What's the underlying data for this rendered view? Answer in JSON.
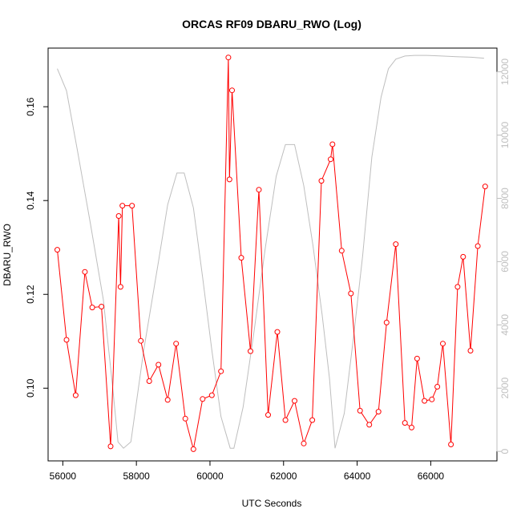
{
  "chart_data": {
    "type": "line",
    "title": "ORCAS RF09 DBARU_RWO (Log)",
    "xlabel": "UTC Seconds",
    "ylabel": "DBARU_RWO",
    "ylabel_right": "",
    "xlim": [
      55600,
      67800
    ],
    "ylim": [
      0.0845,
      0.1725
    ],
    "ylim_right": [
      -300,
      12750
    ],
    "x_ticks": [
      56000,
      58000,
      60000,
      62000,
      64000,
      66000
    ],
    "y_ticks": [
      0.1,
      0.12,
      0.14,
      0.16
    ],
    "y_ticks_right": [
      0,
      2000,
      4000,
      6000,
      8000,
      10000,
      12000
    ],
    "grid": false,
    "colors": {
      "primary": "#ff0000",
      "secondary": "#bebebe"
    },
    "series": [
      {
        "axis": "left",
        "style": "line+open-circles",
        "x": [
          55850,
          56100,
          56350,
          56600,
          56800,
          57050,
          57300,
          57520,
          57570,
          57620,
          57880,
          58120,
          58350,
          58600,
          58850,
          59080,
          59330,
          59550,
          59800,
          60050,
          60300,
          60500,
          60530,
          60600,
          60850,
          61100,
          61330,
          61580,
          61830,
          62050,
          62300,
          62550,
          62780,
          63030,
          63280,
          63330,
          63580,
          63830,
          64080,
          64330,
          64580,
          64800,
          65050,
          65300,
          65480,
          65630,
          65830,
          66030,
          66180,
          66330,
          66550,
          66730,
          66880,
          67080,
          67280,
          67480
        ],
        "y": [
          0.1295,
          0.1103,
          0.0985,
          0.1248,
          0.1172,
          0.1174,
          0.0876,
          0.1367,
          0.1216,
          0.1389,
          0.1389,
          0.1101,
          0.1015,
          0.105,
          0.0975,
          0.1095,
          0.0935,
          0.087,
          0.0977,
          0.0985,
          0.1036,
          0.1705,
          0.1445,
          0.1635,
          0.1278,
          0.1079,
          0.1423,
          0.0943,
          0.112,
          0.0932,
          0.0973,
          0.0882,
          0.0932,
          0.1442,
          0.1488,
          0.152,
          0.1293,
          0.1202,
          0.0952,
          0.0922,
          0.095,
          0.114,
          0.1307,
          0.0926,
          0.0916,
          0.1063,
          0.0973,
          0.0976,
          0.1003,
          0.1095,
          0.088,
          0.1216,
          0.128,
          0.108,
          0.1303,
          0.143
        ]
      },
      {
        "axis": "right",
        "style": "line",
        "x": [
          55850,
          56100,
          56400,
          56750,
          57100,
          57350,
          57500,
          57650,
          57850,
          58200,
          58600,
          58850,
          59100,
          59300,
          59550,
          59800,
          60050,
          60300,
          60550,
          60650,
          60900,
          61200,
          61500,
          61800,
          62050,
          62300,
          62550,
          62800,
          63050,
          63250,
          63400,
          63650,
          63900,
          64150,
          64400,
          64650,
          64850,
          65050,
          65300,
          65550,
          65900,
          66300,
          66700,
          67100,
          67450
        ],
        "y": [
          12100,
          11400,
          9500,
          7200,
          4800,
          2100,
          300,
          100,
          300,
          3200,
          6000,
          7800,
          8800,
          8800,
          7700,
          5500,
          3200,
          1100,
          100,
          100,
          1400,
          3800,
          6400,
          8700,
          9700,
          9700,
          8400,
          6500,
          4300,
          2300,
          100,
          1200,
          3600,
          6200,
          9300,
          11200,
          12100,
          12400,
          12500,
          12520,
          12520,
          12500,
          12480,
          12460,
          12430
        ]
      }
    ]
  }
}
